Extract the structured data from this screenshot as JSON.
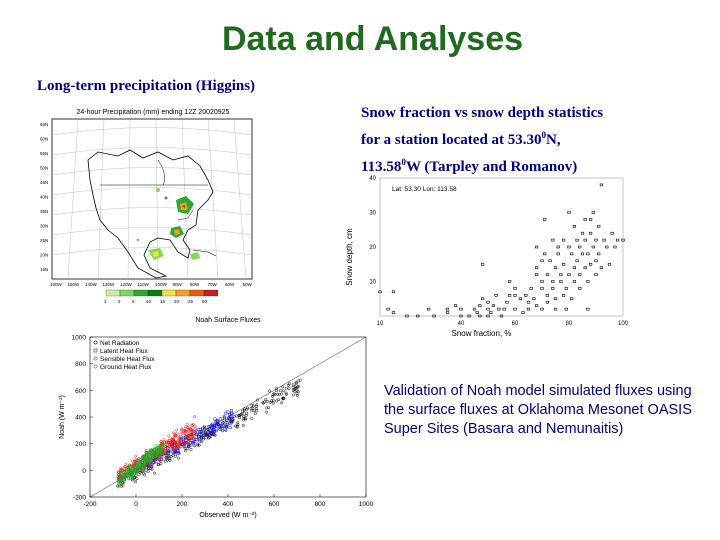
{
  "slide": {
    "title": "Data and Analyses",
    "precip_heading": "Long-term precipitation (Higgins)",
    "snow_caption": {
      "line1": "Snow fraction vs snow depth statistics",
      "line2_pre": "for a station located at 53.30",
      "line2_sup": "0",
      "line2_post": "N,",
      "line3_pre": "113.58",
      "line3_sup": "0",
      "line3_post": "W (Tarpley and Romanov)"
    },
    "flux_caption": "Validation of Noah model simulated fluxes using the surface fluxes at Oklahoma Mesonet OASIS Super Sites (Basara and Nemunaitis)"
  },
  "colors": {
    "title": "#1e6b1e",
    "captions": "#000080",
    "net_radiation": "#000000",
    "latent_heat": "#1f1fe0",
    "sensible_heat": "#e01f1f",
    "ground_heat": "#22aa22"
  },
  "map_figure": {
    "title": "24-hour Precipitation (mm) ending 12Z 20020925",
    "lat_labels": [
      "65N",
      "60N",
      "55N",
      "50N",
      "45N",
      "40N",
      "35N",
      "30N",
      "25N",
      "20N",
      "15N"
    ],
    "lon_labels": [
      "160W",
      "150W",
      "140W",
      "130W",
      "120W",
      "110W",
      "100W",
      "90W",
      "80W",
      "70W",
      "60W",
      "50W"
    ],
    "colorbar_labels": [
      "1",
      "2",
      "5",
      "10",
      "15",
      "20",
      "25",
      "50"
    ],
    "colorbar_colors": [
      "#c8f0a0",
      "#7ed957",
      "#2fa82f",
      "#0b7a0b",
      "#f0e040",
      "#f0a020",
      "#e06010",
      "#c02020"
    ]
  },
  "chart_data": [
    {
      "type": "scatter",
      "title": "",
      "annotation": "Lat: 53.30  Lon: 113.58",
      "xlabel": "Snow fraction, %",
      "ylabel": "Snow depth, cm",
      "xlim": [
        10,
        100
      ],
      "ylim": [
        0,
        40
      ],
      "x_ticks": [
        "10",
        "40",
        "60",
        "80",
        "100"
      ],
      "y_ticks": [
        "10",
        "20",
        "30",
        "40"
      ],
      "points": [
        [
          10,
          7
        ],
        [
          13,
          2
        ],
        [
          15,
          1
        ],
        [
          15,
          7
        ],
        [
          20,
          0
        ],
        [
          24,
          0
        ],
        [
          28,
          2
        ],
        [
          30,
          0
        ],
        [
          35,
          1
        ],
        [
          35,
          2
        ],
        [
          38,
          3
        ],
        [
          40,
          0
        ],
        [
          40,
          2
        ],
        [
          43,
          0
        ],
        [
          45,
          2
        ],
        [
          46,
          1
        ],
        [
          47,
          0
        ],
        [
          47,
          3
        ],
        [
          48,
          15
        ],
        [
          48,
          5
        ],
        [
          50,
          2
        ],
        [
          50,
          4
        ],
        [
          50,
          0
        ],
        [
          51,
          1
        ],
        [
          52,
          3
        ],
        [
          53,
          6
        ],
        [
          54,
          2
        ],
        [
          55,
          0
        ],
        [
          56,
          2
        ],
        [
          57,
          4
        ],
        [
          58,
          6
        ],
        [
          58,
          10
        ],
        [
          60,
          2
        ],
        [
          60,
          6
        ],
        [
          60,
          8
        ],
        [
          62,
          5
        ],
        [
          63,
          1
        ],
        [
          64,
          6
        ],
        [
          65,
          4
        ],
        [
          65,
          2
        ],
        [
          66,
          8
        ],
        [
          67,
          5
        ],
        [
          68,
          3
        ],
        [
          68,
          12
        ],
        [
          68,
          20
        ],
        [
          68,
          14
        ],
        [
          70,
          2
        ],
        [
          70,
          8
        ],
        [
          70,
          10
        ],
        [
          70,
          16
        ],
        [
          71,
          18
        ],
        [
          71,
          28
        ],
        [
          72,
          4
        ],
        [
          72,
          6
        ],
        [
          72,
          12
        ],
        [
          73,
          16
        ],
        [
          74,
          8
        ],
        [
          74,
          10
        ],
        [
          74,
          22
        ],
        [
          75,
          2
        ],
        [
          75,
          5
        ],
        [
          75,
          14
        ],
        [
          76,
          18
        ],
        [
          76,
          20
        ],
        [
          77,
          10
        ],
        [
          77,
          12
        ],
        [
          78,
          6
        ],
        [
          78,
          15
        ],
        [
          78,
          22
        ],
        [
          79,
          2
        ],
        [
          79,
          8
        ],
        [
          80,
          12
        ],
        [
          80,
          20
        ],
        [
          80,
          30
        ],
        [
          81,
          5
        ],
        [
          81,
          18
        ],
        [
          82,
          10
        ],
        [
          82,
          14
        ],
        [
          82,
          26
        ],
        [
          83,
          16
        ],
        [
          83,
          22
        ],
        [
          84,
          8
        ],
        [
          84,
          12
        ],
        [
          84,
          20
        ],
        [
          85,
          18
        ],
        [
          85,
          24
        ],
        [
          86,
          14
        ],
        [
          86,
          22
        ],
        [
          86,
          28
        ],
        [
          87,
          2
        ],
        [
          87,
          10
        ],
        [
          87,
          18
        ],
        [
          88,
          15
        ],
        [
          88,
          24
        ],
        [
          88,
          28
        ],
        [
          89,
          20
        ],
        [
          89,
          30
        ],
        [
          90,
          12
        ],
        [
          90,
          16
        ],
        [
          90,
          22
        ],
        [
          91,
          18
        ],
        [
          91,
          26
        ],
        [
          92,
          38
        ],
        [
          92,
          14
        ],
        [
          93,
          22
        ],
        [
          94,
          20
        ],
        [
          95,
          15
        ],
        [
          96,
          24
        ],
        [
          97,
          20
        ],
        [
          98,
          22
        ],
        [
          100,
          22
        ]
      ]
    },
    {
      "type": "scatter",
      "title": "Noah Surface Fluxes",
      "xlabel": "Observed (W m⁻²)",
      "ylabel": "Noah (W m⁻²)",
      "xlim": [
        -200,
        1000
      ],
      "ylim": [
        -200,
        1000
      ],
      "x_ticks": [
        "-200",
        "0",
        "200",
        "400",
        "600",
        "800",
        "1000"
      ],
      "y_ticks": [
        "-200",
        "0",
        "200",
        "400",
        "600",
        "800",
        "1000"
      ],
      "legend_position": "top-left",
      "series": [
        {
          "name": "Net Radiation",
          "marker": "circle",
          "x_range": [
            -80,
            720
          ],
          "slope": 0.92,
          "intercept": -10,
          "spread": 45
        },
        {
          "name": "Latent Heat Flux",
          "marker": "square",
          "x_range": [
            -20,
            420
          ],
          "slope": 0.9,
          "intercept": 20,
          "spread": 45
        },
        {
          "name": "Sensible Heat Flux",
          "marker": "circle",
          "x_range": [
            -80,
            260
          ],
          "slope": 1.1,
          "intercept": 30,
          "spread": 50
        },
        {
          "name": "Ground Heat Flux",
          "marker": "circle",
          "x_range": [
            -80,
            120
          ],
          "slope": 1.3,
          "intercept": 20,
          "spread": 35
        }
      ]
    }
  ]
}
